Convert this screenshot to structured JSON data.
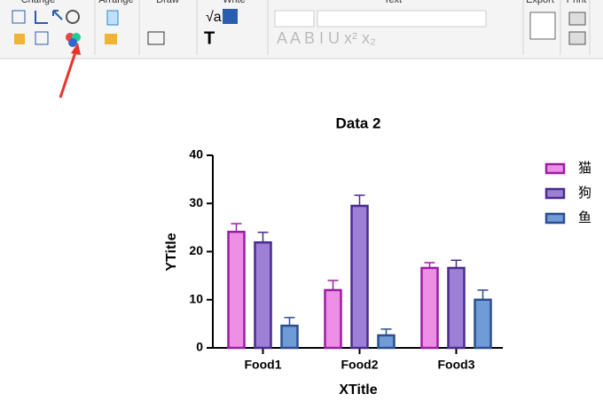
{
  "toolbar": {
    "groups": [
      "Change",
      "Arrange",
      "Draw",
      "Write",
      "Text",
      "Export",
      "Print"
    ]
  },
  "chart_data": {
    "type": "bar",
    "title": "Data 2",
    "x_label": "XTitle",
    "y_label": "YTitle",
    "categories": [
      "Food1",
      "Food2",
      "Food3"
    ],
    "series": [
      {
        "name": "猫",
        "color": "#ee8fe6",
        "edge": "#9a1ea4",
        "values": [
          24.1,
          12.0,
          16.6
        ],
        "errors": [
          1.7,
          2.0,
          1.1
        ]
      },
      {
        "name": "狗",
        "color": "#9d80d6",
        "edge": "#4a2b8e",
        "values": [
          21.9,
          29.5,
          16.6
        ],
        "errors": [
          2.1,
          2.2,
          1.6
        ]
      },
      {
        "name": "鱼",
        "color": "#6f9bd6",
        "edge": "#2b4f8f",
        "values": [
          4.6,
          2.6,
          10.0
        ],
        "errors": [
          1.7,
          1.3,
          2.0
        ]
      }
    ],
    "ylim": [
      0,
      40
    ],
    "yticks": [
      0,
      10,
      20,
      30,
      40
    ],
    "legend": "right"
  }
}
